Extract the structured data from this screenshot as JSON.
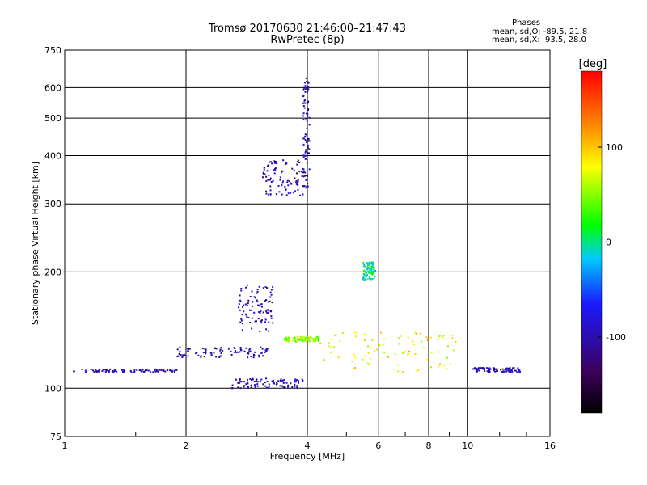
{
  "title": {
    "line1": "Tromsø 20170630 21:46:00–21:47:43",
    "line2": "RwPretec (8p)"
  },
  "phases": {
    "heading": "Phases",
    "o_line": "mean, sd,O: -89.5, 21.8",
    "x_line": "mean, sd,X:  93.5, 28.0"
  },
  "chart_data": {
    "type": "scatter",
    "xlabel": "Frequency [MHz]",
    "ylabel": "Stationary phase Virtual Height [km]",
    "x_scale": "log",
    "y_scale": "log",
    "xlim": [
      1,
      16
    ],
    "ylim": [
      75,
      750
    ],
    "x_ticks": [
      1,
      2,
      4,
      6,
      8,
      10,
      16
    ],
    "y_ticks": [
      75,
      100,
      200,
      300,
      400,
      500,
      600,
      750
    ],
    "grid": true,
    "colorbar": {
      "label": "[deg]",
      "range": [
        -180,
        180
      ],
      "ticks": [
        -100,
        0,
        100
      ],
      "colors": [
        "#000000",
        "#3d005a",
        "#1a1aff",
        "#00c8ff",
        "#00ff00",
        "#ffff00",
        "#ff8000",
        "#ff0000"
      ]
    },
    "traces": [
      {
        "name": "",
        "phase_deg": -100,
        "x_range": [
          1.05,
          1.9
        ],
        "h_range": [
          110,
          112
        ]
      },
      {
        "name": "",
        "phase_deg": -100,
        "x_range": [
          1.9,
          3.2
        ],
        "h_range": [
          120,
          128
        ]
      },
      {
        "name": "",
        "phase_deg": -100,
        "x_range": [
          2.6,
          3.9
        ],
        "h_range": [
          100,
          106
        ]
      },
      {
        "name": "",
        "phase_deg": -100,
        "x_range": [
          2.7,
          3.3
        ],
        "h_range": [
          140,
          185
        ]
      },
      {
        "name": "",
        "phase_deg": -100,
        "x_range": [
          3.1,
          3.95
        ],
        "h_range": [
          315,
          390
        ]
      },
      {
        "name": "",
        "phase_deg": -100,
        "x_range": [
          3.9,
          4.05
        ],
        "h_range": [
          330,
          640
        ]
      },
      {
        "name": "",
        "phase_deg": 50,
        "x_range": [
          3.5,
          4.3
        ],
        "h_range": [
          132,
          136
        ]
      },
      {
        "name": "",
        "phase_deg": 0,
        "x_range": [
          5.5,
          5.9
        ],
        "h_range": [
          190,
          212
        ]
      },
      {
        "name": "",
        "phase_deg": -100,
        "x_range": [
          10.3,
          13.5
        ],
        "h_range": [
          110,
          113
        ]
      },
      {
        "name": "",
        "phase_deg": 80,
        "x_range": [
          4.2,
          9.5
        ],
        "h_range": [
          110,
          140
        ]
      }
    ]
  }
}
